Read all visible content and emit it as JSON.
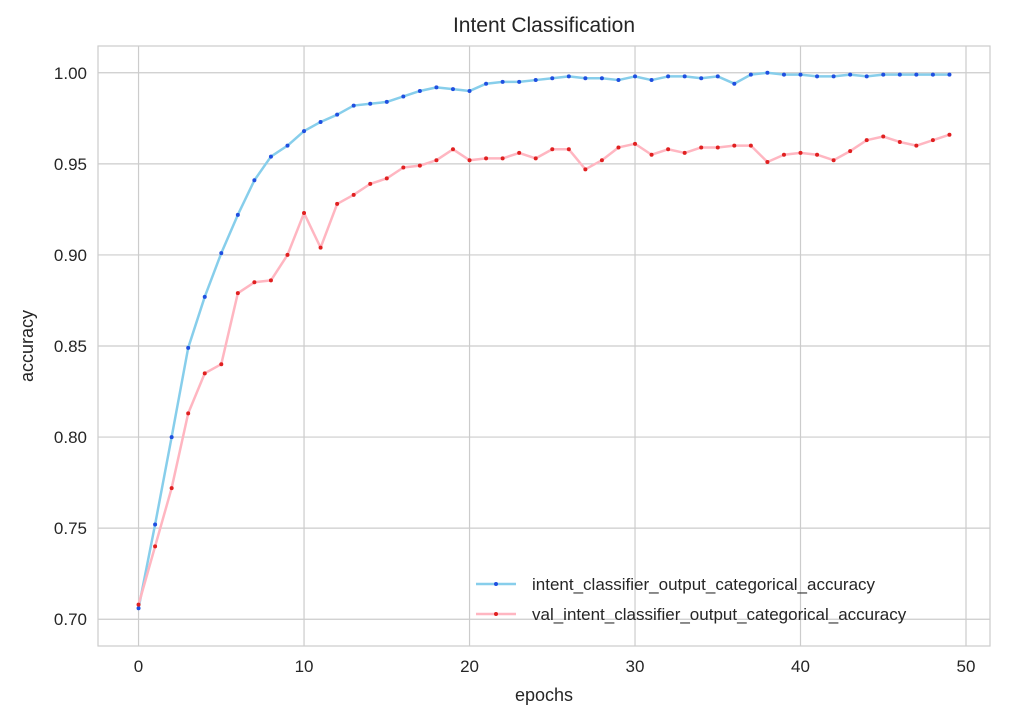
{
  "chart_data": {
    "type": "line",
    "title": "Intent Classification",
    "xlabel": "epochs",
    "ylabel": "accuracy",
    "xlim": [
      -2.45,
      51.45
    ],
    "ylim": [
      0.6853,
      1.0147
    ],
    "xticks": [
      0,
      10,
      20,
      30,
      40,
      50
    ],
    "yticks": [
      0.7,
      0.75,
      0.8,
      0.85,
      0.9,
      0.95,
      1.0
    ],
    "xtick_labels": [
      "0",
      "10",
      "20",
      "30",
      "40",
      "50"
    ],
    "ytick_labels": [
      "0.70",
      "0.75",
      "0.80",
      "0.85",
      "0.90",
      "0.95",
      "1.00"
    ],
    "grid": true,
    "legend_position": "lower-right",
    "series": [
      {
        "name": "intent_classifier_output_categorical_accuracy",
        "line_color": "#87ceeb",
        "marker_color": "#1f4fe0",
        "x": [
          0,
          1,
          2,
          3,
          4,
          5,
          6,
          7,
          8,
          9,
          10,
          11,
          12,
          13,
          14,
          15,
          16,
          17,
          18,
          19,
          20,
          21,
          22,
          23,
          24,
          25,
          26,
          27,
          28,
          29,
          30,
          31,
          32,
          33,
          34,
          35,
          36,
          37,
          38,
          39,
          40,
          41,
          42,
          43,
          44,
          45,
          46,
          47,
          48,
          49
        ],
        "y": [
          0.706,
          0.752,
          0.8,
          0.849,
          0.877,
          0.901,
          0.922,
          0.941,
          0.954,
          0.96,
          0.968,
          0.973,
          0.977,
          0.982,
          0.983,
          0.984,
          0.987,
          0.99,
          0.992,
          0.991,
          0.99,
          0.994,
          0.995,
          0.995,
          0.996,
          0.997,
          0.998,
          0.997,
          0.997,
          0.996,
          0.998,
          0.996,
          0.998,
          0.998,
          0.997,
          0.998,
          0.994,
          0.999,
          1.0,
          0.999,
          0.999,
          0.998,
          0.998,
          0.999,
          0.998,
          0.999,
          0.999,
          0.999,
          0.999,
          0.999
        ]
      },
      {
        "name": "val_intent_classifier_output_categorical_accuracy",
        "line_color": "#ffb6c1",
        "marker_color": "#e02020",
        "x": [
          0,
          1,
          2,
          3,
          4,
          5,
          6,
          7,
          8,
          9,
          10,
          11,
          12,
          13,
          14,
          15,
          16,
          17,
          18,
          19,
          20,
          21,
          22,
          23,
          24,
          25,
          26,
          27,
          28,
          29,
          30,
          31,
          32,
          33,
          34,
          35,
          36,
          37,
          38,
          39,
          40,
          41,
          42,
          43,
          44,
          45,
          46,
          47,
          48,
          49
        ],
        "y": [
          0.708,
          0.74,
          0.772,
          0.813,
          0.835,
          0.84,
          0.879,
          0.885,
          0.886,
          0.9,
          0.923,
          0.904,
          0.928,
          0.933,
          0.939,
          0.942,
          0.948,
          0.949,
          0.952,
          0.958,
          0.952,
          0.953,
          0.953,
          0.956,
          0.953,
          0.958,
          0.958,
          0.947,
          0.952,
          0.959,
          0.961,
          0.955,
          0.958,
          0.956,
          0.959,
          0.959,
          0.96,
          0.96,
          0.951,
          0.955,
          0.956,
          0.955,
          0.952,
          0.957,
          0.963,
          0.965,
          0.962,
          0.96,
          0.963,
          0.966
        ]
      }
    ]
  }
}
